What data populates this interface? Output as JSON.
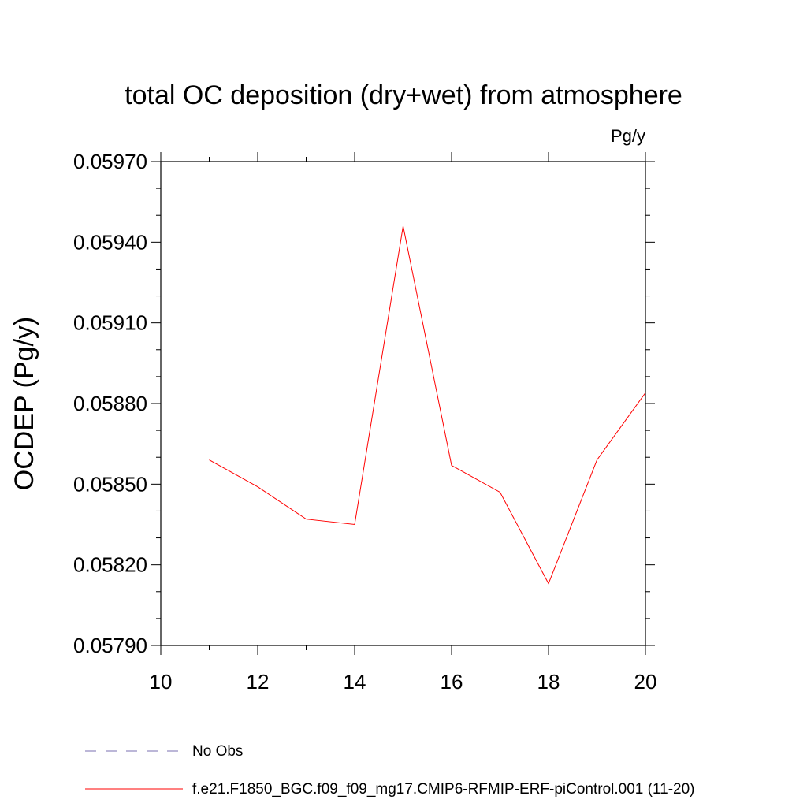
{
  "chart_data": {
    "type": "line",
    "title": "total OC deposition (dry+wet) from atmosphere",
    "units_label": "Pg/y",
    "xlabel": "",
    "ylabel": "OCDEP  (Pg/y)",
    "xlim": [
      10,
      20
    ],
    "ylim": [
      0.0579,
      0.0597
    ],
    "x_ticks": [
      "10",
      "12",
      "14",
      "16",
      "18",
      "20"
    ],
    "y_ticks": [
      "0.05970",
      "0.05940",
      "0.05910",
      "0.05880",
      "0.05850",
      "0.05820",
      "0.05790"
    ],
    "grid": false,
    "legend_position": "bottom",
    "series": [
      {
        "name": "No Obs",
        "color": "#7a6fb0",
        "dash": "dashed",
        "x": [],
        "values": []
      },
      {
        "name": "f.e21.F1850_BGC.f09_f09_mg17.CMIP6-RFMIP-ERF-piControl.001 (11-20)",
        "color": "#ff0000",
        "dash": "solid",
        "x": [
          11,
          12,
          13,
          14,
          15,
          16,
          17,
          18,
          19,
          20
        ],
        "values": [
          0.05859,
          0.05849,
          0.05837,
          0.05835,
          0.05946,
          0.05857,
          0.05847,
          0.05813,
          0.05859,
          0.05884
        ]
      }
    ]
  }
}
